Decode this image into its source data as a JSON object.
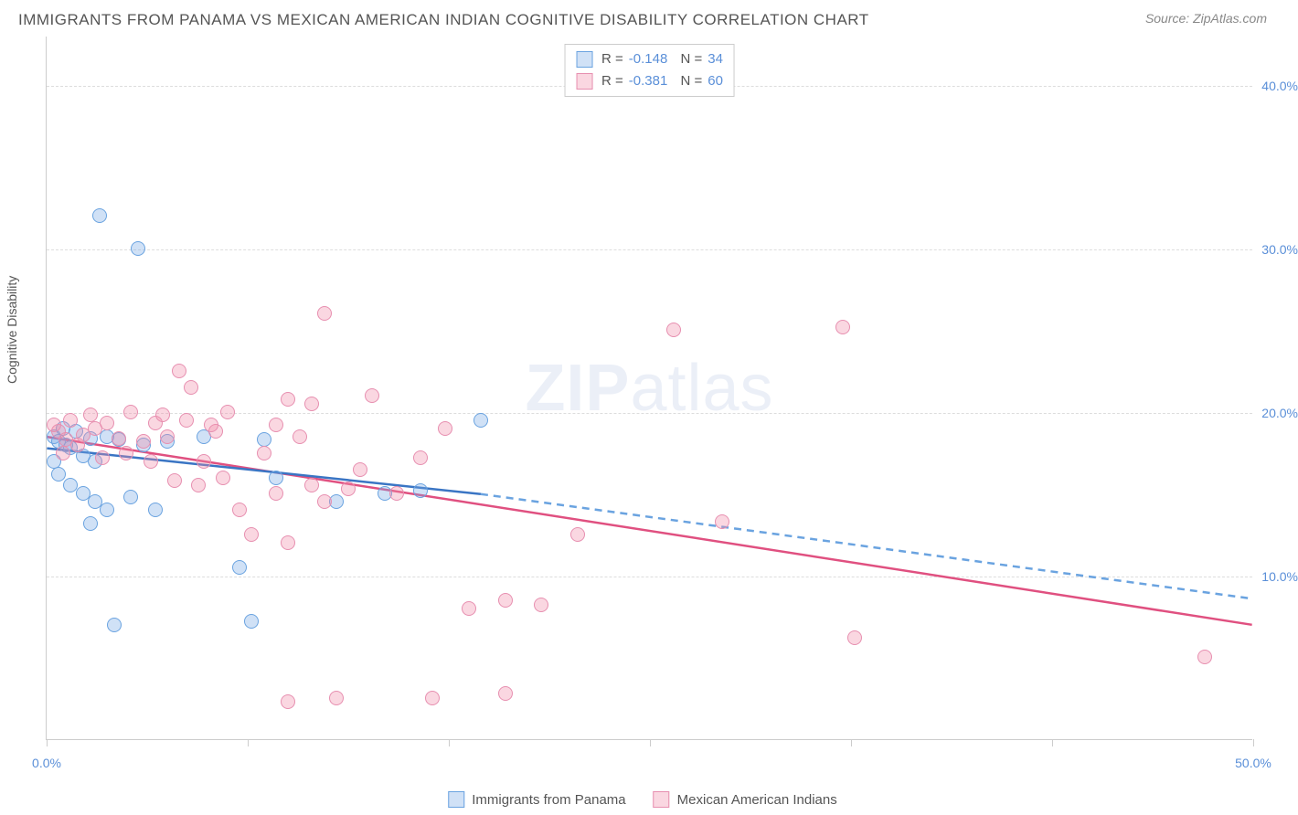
{
  "title": "IMMIGRANTS FROM PANAMA VS MEXICAN AMERICAN INDIAN COGNITIVE DISABILITY CORRELATION CHART",
  "source": "Source: ZipAtlas.com",
  "y_axis_label": "Cognitive Disability",
  "watermark_bold": "ZIP",
  "watermark_light": "atlas",
  "chart": {
    "type": "scatter",
    "xlim": [
      0,
      50
    ],
    "ylim": [
      0,
      43
    ],
    "y_ticks": [
      10,
      20,
      30,
      40
    ],
    "y_tick_labels": [
      "10.0%",
      "20.0%",
      "30.0%",
      "40.0%"
    ],
    "x_ticks": [
      0,
      8.33,
      16.67,
      25,
      33.33,
      41.67,
      50
    ],
    "x_tick_labels_shown": {
      "0": "0.0%",
      "50": "50.0%"
    },
    "background_color": "#ffffff",
    "grid_color": "#dddddd",
    "axis_color": "#cccccc"
  },
  "series": [
    {
      "name": "Immigrants from Panama",
      "fill_color": "rgba(120, 170, 230, 0.35)",
      "stroke_color": "#6aa3e0",
      "line_color": "#3a75c4",
      "dash_color": "#6aa3e0",
      "R": "-0.148",
      "N": "34",
      "trend": {
        "x1": 0,
        "y1": 17.8,
        "x2": 18,
        "y2": 15.0
      },
      "trend_dash": {
        "x1": 18,
        "y1": 15.0,
        "x2": 50,
        "y2": 8.6
      },
      "points": [
        [
          2.2,
          32.0
        ],
        [
          3.8,
          30.0
        ],
        [
          0.3,
          18.5
        ],
        [
          0.5,
          18.2
        ],
        [
          0.8,
          18.0
        ],
        [
          1.0,
          17.8
        ],
        [
          1.2,
          18.8
        ],
        [
          1.5,
          17.3
        ],
        [
          1.8,
          18.4
        ],
        [
          2.0,
          17.0
        ],
        [
          2.5,
          18.5
        ],
        [
          0.5,
          16.2
        ],
        [
          1.0,
          15.5
        ],
        [
          1.5,
          15.0
        ],
        [
          2.0,
          14.5
        ],
        [
          2.5,
          14.0
        ],
        [
          3.0,
          18.3
        ],
        [
          4.0,
          18.0
        ],
        [
          5.0,
          18.2
        ],
        [
          1.8,
          13.2
        ],
        [
          3.5,
          14.8
        ],
        [
          4.5,
          14.0
        ],
        [
          2.8,
          7.0
        ],
        [
          8.0,
          10.5
        ],
        [
          8.5,
          7.2
        ],
        [
          9.0,
          18.3
        ],
        [
          6.5,
          18.5
        ],
        [
          9.5,
          16.0
        ],
        [
          12.0,
          14.5
        ],
        [
          14.0,
          15.0
        ],
        [
          15.5,
          15.2
        ],
        [
          18.0,
          19.5
        ],
        [
          0.7,
          19.0
        ],
        [
          0.3,
          17.0
        ]
      ]
    },
    {
      "name": "Mexican American Indians",
      "fill_color": "rgba(240, 140, 170, 0.35)",
      "stroke_color": "#e78fb0",
      "line_color": "#e05080",
      "R": "-0.381",
      "N": "60",
      "trend": {
        "x1": 0,
        "y1": 18.5,
        "x2": 50,
        "y2": 7.0
      },
      "points": [
        [
          0.5,
          18.8
        ],
        [
          0.8,
          18.3
        ],
        [
          1.0,
          19.5
        ],
        [
          1.5,
          18.6
        ],
        [
          2.0,
          19.0
        ],
        [
          1.8,
          19.8
        ],
        [
          2.5,
          19.3
        ],
        [
          3.0,
          18.4
        ],
        [
          3.5,
          20.0
        ],
        [
          4.0,
          18.2
        ],
        [
          4.5,
          19.3
        ],
        [
          5.5,
          22.5
        ],
        [
          5.0,
          18.5
        ],
        [
          6.0,
          21.5
        ],
        [
          7.0,
          18.8
        ],
        [
          7.5,
          20.0
        ],
        [
          6.5,
          17.0
        ],
        [
          9.0,
          17.5
        ],
        [
          10.0,
          20.8
        ],
        [
          11.0,
          20.5
        ],
        [
          11.5,
          26.0
        ],
        [
          10.5,
          18.5
        ],
        [
          9.5,
          15.0
        ],
        [
          8.0,
          14.0
        ],
        [
          8.5,
          12.5
        ],
        [
          10.0,
          12.0
        ],
        [
          10.0,
          2.3
        ],
        [
          11.5,
          14.5
        ],
        [
          12.5,
          15.3
        ],
        [
          12.0,
          2.5
        ],
        [
          13.0,
          16.5
        ],
        [
          13.5,
          21.0
        ],
        [
          14.5,
          15.0
        ],
        [
          15.5,
          17.2
        ],
        [
          16.5,
          19.0
        ],
        [
          16.0,
          2.5
        ],
        [
          17.5,
          8.0
        ],
        [
          19.0,
          8.5
        ],
        [
          19.0,
          2.8
        ],
        [
          20.5,
          8.2
        ],
        [
          22.0,
          12.5
        ],
        [
          26.0,
          25.0
        ],
        [
          28.0,
          13.3
        ],
        [
          33.0,
          25.2
        ],
        [
          33.5,
          6.2
        ],
        [
          48.0,
          5.0
        ],
        [
          0.3,
          19.2
        ],
        [
          1.3,
          18.0
        ],
        [
          0.7,
          17.5
        ],
        [
          2.3,
          17.2
        ],
        [
          3.3,
          17.5
        ],
        [
          4.3,
          17.0
        ],
        [
          5.3,
          15.8
        ],
        [
          6.3,
          15.5
        ],
        [
          7.3,
          16.0
        ],
        [
          4.8,
          19.8
        ],
        [
          5.8,
          19.5
        ],
        [
          6.8,
          19.2
        ],
        [
          11.0,
          15.5
        ],
        [
          9.5,
          19.2
        ]
      ]
    }
  ],
  "bottom_legend": [
    {
      "label": "Immigrants from Panama",
      "fill": "rgba(120,170,230,0.35)",
      "stroke": "#6aa3e0"
    },
    {
      "label": "Mexican American Indians",
      "fill": "rgba(240,140,170,0.35)",
      "stroke": "#e78fb0"
    }
  ]
}
